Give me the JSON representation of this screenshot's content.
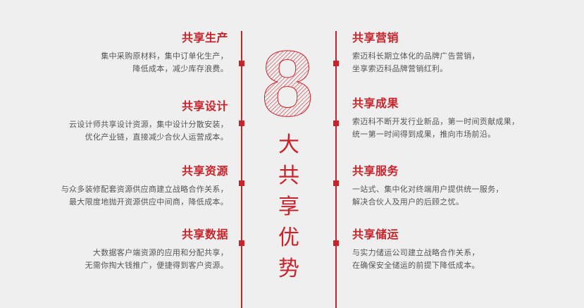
{
  "center": {
    "numeral": "8",
    "title_chars": [
      "大",
      "共",
      "享",
      "优",
      "势"
    ]
  },
  "left_items": [
    {
      "title": "共享生产",
      "desc": "集中采购原材料，集中订单化生产，\n降低成本，减少库存浪费。"
    },
    {
      "title": "共享设计",
      "desc": "云设计师共享设计资源，集中设计分散安装，\n优化产业链，直接减少合伙人运营成本。"
    },
    {
      "title": "共享资源",
      "desc": "与众多装修配套资源供应商建立战略合作关系，\n最大限度地抛开资源供应中间商，降低成本。"
    },
    {
      "title": "共享数据",
      "desc": "大数据客户端资源的应用和分配共享，\n无需你掏大钱推广，便捷得到客户资源。"
    }
  ],
  "right_items": [
    {
      "title": "共享营销",
      "desc": "索迈科长期立体化的品牌广告营销，\n坐享索迈科品牌营销红利。"
    },
    {
      "title": "共享成果",
      "desc": "索迈科不断开发行业新品，第一时间贡献成果，\n统一第一时间得到成果，推向市场前沿。"
    },
    {
      "title": "共享服务",
      "desc": "一站式、集中化对终端用户提供统一服务，\n解决合伙人及用户的后顾之忧。"
    },
    {
      "title": "共享储运",
      "desc": "与实力储运公司建立战略合作关系，\n在确保安全储运的前提下降低成本。"
    }
  ],
  "colors": {
    "accent": "#c8232b",
    "background": "#efefef",
    "text": "#555555"
  }
}
